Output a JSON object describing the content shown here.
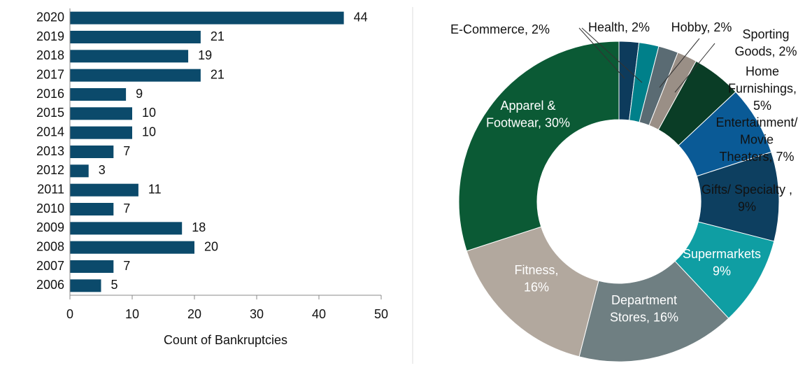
{
  "chart_data": [
    {
      "type": "bar",
      "orientation": "horizontal",
      "categories": [
        "2020",
        "2019",
        "2018",
        "2017",
        "2016",
        "2015",
        "2014",
        "2013",
        "2012",
        "2011",
        "2010",
        "2009",
        "2008",
        "2007",
        "2006"
      ],
      "values": [
        44,
        21,
        19,
        21,
        9,
        10,
        10,
        7,
        3,
        11,
        7,
        18,
        20,
        7,
        5
      ],
      "color": "#0b4a6b",
      "xlim": [
        0,
        50
      ],
      "xticks": [
        0,
        10,
        20,
        30,
        40,
        50
      ],
      "x_label": "Count of Bankruptcies"
    },
    {
      "type": "donut",
      "labels": [
        [
          "E-Commerce, 2%"
        ],
        [
          "Health, 2%"
        ],
        [
          "Hobby, 2%"
        ],
        [
          "Sporting",
          "Goods, 2%"
        ],
        [
          "Home",
          "Furnishings,",
          "5%"
        ],
        [
          "Entertainment/",
          "Movie",
          "Theaters, 7%"
        ],
        [
          "Gifts/ Specialty ,",
          "9%"
        ],
        [
          "Supermarkets",
          "9%"
        ],
        [
          "Department",
          "Stores, 16%"
        ],
        [
          "Fitness,",
          "16%"
        ],
        [
          "Apparel &",
          "Footwear, 30%"
        ]
      ],
      "values": [
        2,
        2,
        2,
        2,
        5,
        7,
        9,
        9,
        16,
        16,
        30
      ],
      "colors": [
        "#0d3b5c",
        "#00808a",
        "#5a6b73",
        "#9a8f86",
        "#0a3d26",
        "#0a5a96",
        "#0d3f60",
        "#0f9ea3",
        "#6f7f82",
        "#b2a89e",
        "#0b5a35"
      ]
    }
  ]
}
